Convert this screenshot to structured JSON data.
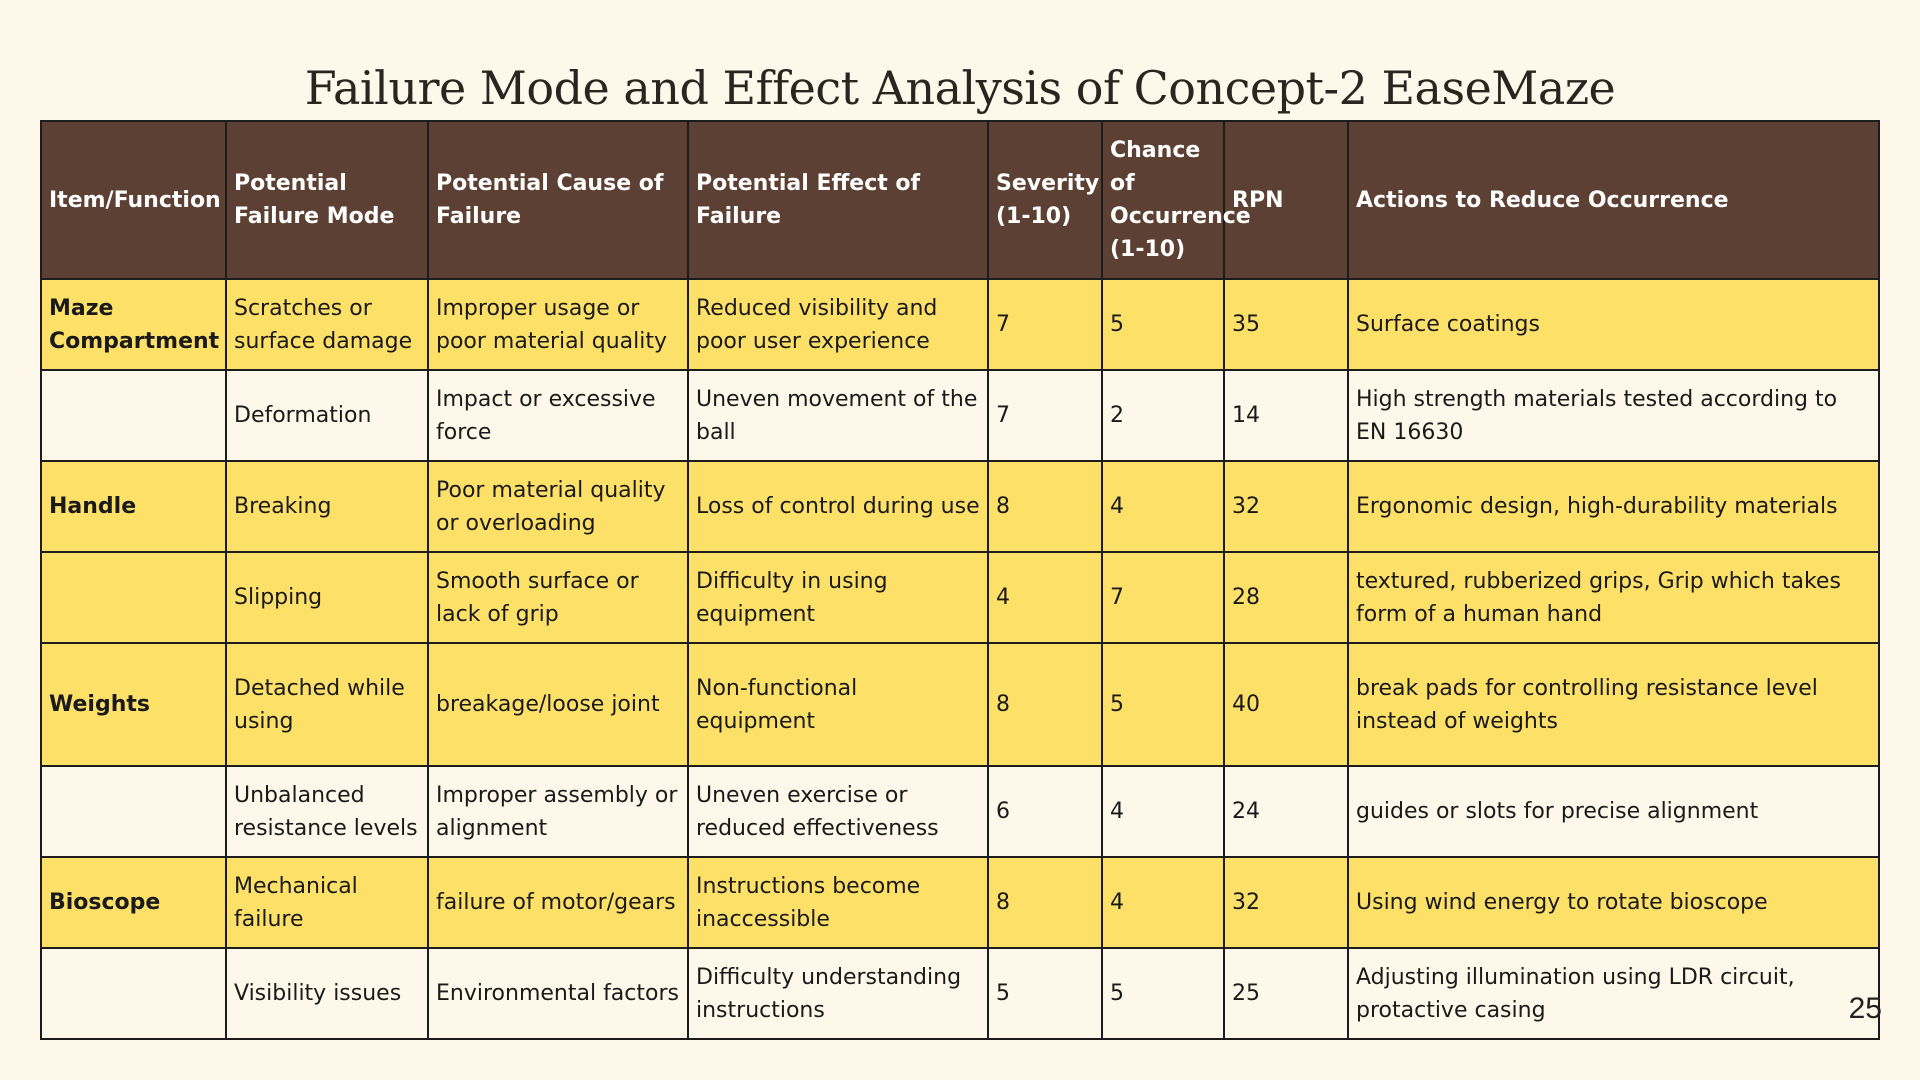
{
  "title": "Failure Mode and Effect Analysis of Concept-2 EaseMaze",
  "table": {
    "headers": [
      "Item/Function",
      "Potential Failure Mode",
      "Potential Cause of Failure",
      "Potential Effect of Failure",
      "Severity (1-10)",
      "Chance of Occurrence (1-10)",
      "RPN",
      "Actions to Reduce Occurrence"
    ],
    "rows": [
      [
        "Maze Compartment",
        "Scratches or surface damage",
        "Improper usage or poor material quality",
        "Reduced visibility and poor user experience",
        "7",
        "5",
        "35",
        "Surface coatings"
      ],
      [
        "",
        "Deformation",
        "Impact or excessive force",
        "Uneven movement of the ball",
        "7",
        "2",
        "14",
        "High strength materials tested according to EN 16630"
      ],
      [
        "Handle",
        "Breaking",
        "Poor material quality or overloading",
        "Loss of control during use",
        "8",
        "4",
        "32",
        "Ergonomic design, high-durability materials"
      ],
      [
        "",
        "Slipping",
        "Smooth surface or lack of grip",
        "Difficulty in using equipment",
        "4",
        "7",
        "28",
        "textured, rubberized grips, Grip which takes form of a human hand"
      ],
      [
        "Weights",
        "Detached while using",
        "breakage/loose joint",
        "Non-functional equipment",
        "8",
        "5",
        "40",
        "break pads for controlling resistance level instead of weights"
      ],
      [
        "",
        "Unbalanced resistance levels",
        "Improper assembly or alignment",
        "Uneven exercise or reduced effectiveness",
        "6",
        "4",
        "24",
        "guides or slots for precise alignment"
      ],
      [
        "Bioscope",
        "Mechanical failure",
        "failure of motor/gears",
        "Instructions become inaccessible",
        "8",
        "4",
        "32",
        "Using wind energy to rotate bioscope"
      ],
      [
        "",
        "Visibility issues",
        "Environmental factors",
        "Difficulty understanding instructions",
        "5",
        "5",
        "25",
        "Adjusting illumination using LDR circuit, protactive casing"
      ]
    ]
  },
  "page_number": "25",
  "colors": {
    "header_bg": "#5c4033",
    "row_highlight": "#fde068",
    "row_plain": "#fdf8e9"
  }
}
